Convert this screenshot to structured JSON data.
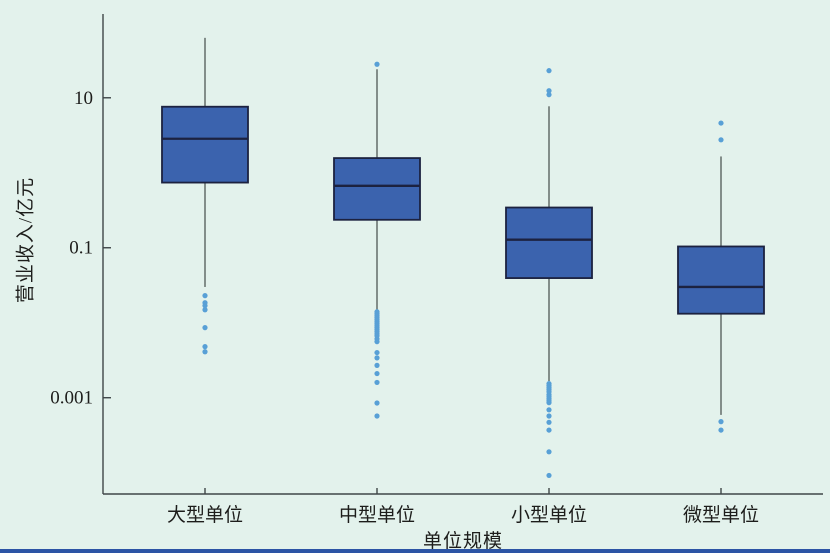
{
  "chart_data": {
    "type": "box",
    "title": "",
    "xlabel": "单位规模",
    "ylabel": "营业收入/亿元",
    "yscale": "log",
    "ylim": [
      5.2e-05,
      131
    ],
    "grid": false,
    "legend": null,
    "yticks": [
      {
        "value": 10,
        "label": "10"
      },
      {
        "value": 0.1,
        "label": "0.1"
      },
      {
        "value": 0.001,
        "label": "0.001"
      }
    ],
    "categories": [
      "大型单位",
      "中型单位",
      "小型单位",
      "微型单位"
    ],
    "boxes": [
      {
        "category": "大型单位",
        "whisker_high": 63,
        "q3": 7.6,
        "median": 2.84,
        "q1": 0.74,
        "whisker_low": 0.03,
        "outliers": [
          0.023,
          0.0185,
          0.0169,
          0.0149,
          0.0086,
          0.0048,
          0.0041
        ]
      },
      {
        "category": "中型单位",
        "whisker_high": 24,
        "q3": 1.57,
        "median": 0.67,
        "q1": 0.236,
        "whisker_low": 0.0149,
        "outliers": [
          28,
          0.014,
          0.0132,
          0.0124,
          0.0117,
          0.011,
          0.0103,
          0.0097,
          0.0091,
          0.0086,
          0.0081,
          0.0076,
          0.0071,
          0.0067,
          0.0061,
          0.0056,
          0.004,
          0.0034,
          0.0027,
          0.0021,
          0.0016,
          0.00085,
          0.00057
        ]
      },
      {
        "category": "小型单位",
        "whisker_high": 7.7,
        "q3": 0.344,
        "median": 0.128,
        "q1": 0.0394,
        "whisker_low": 0.00167,
        "outliers": [
          23,
          12.4,
          11.0,
          0.00154,
          0.00145,
          0.00136,
          0.00128,
          0.0012,
          0.0011,
          0.00104,
          0.00097,
          0.00091,
          0.00086,
          0.00069,
          0.00057,
          0.00047,
          0.00037,
          0.00019,
          9.2e-05
        ]
      },
      {
        "category": "微型单位",
        "whisker_high": 1.65,
        "q3": 0.104,
        "median": 0.03,
        "q1": 0.0132,
        "whisker_low": 0.00059,
        "outliers": [
          4.6,
          2.75,
          0.00048,
          0.00037
        ]
      }
    ],
    "style": {
      "background": "#e3f2ec",
      "box_fill": "#3b63ae",
      "box_edge": "#1c2240",
      "median_color": "#1c2240",
      "whisker_color": "#5a6360",
      "outlier_color": "#58a0d6",
      "axis_color": "#3f4648",
      "text_color": "#1d1d1b",
      "accent_strip": "#2c54a5"
    }
  }
}
